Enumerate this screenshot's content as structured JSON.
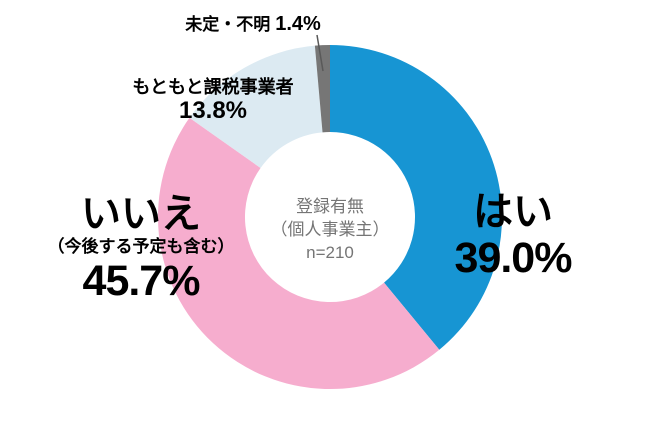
{
  "chart_data": {
    "type": "pie",
    "donut": true,
    "start_angle_deg": -90,
    "direction": "clockwise",
    "center_label": {
      "line1": "登録有無",
      "line2": "（個人事業主）",
      "line3": "n=210"
    },
    "segments": [
      {
        "id": "hai",
        "label": "はい",
        "value": 39.0,
        "value_text": "39.0%",
        "color": "#1795D3"
      },
      {
        "id": "iie",
        "label": "いいえ",
        "sublabel": "（今後する予定も含む）",
        "value": 45.7,
        "value_text": "45.7%",
        "color": "#F6ADCE"
      },
      {
        "id": "motomoto-kazei",
        "label": "もともと課税事業者",
        "value": 13.8,
        "value_text": "13.8%",
        "color": "#DCEAF2"
      },
      {
        "id": "mitei-fumei",
        "label": "未定・不明",
        "value": 1.4,
        "value_text": "1.4%",
        "color": "#767676"
      }
    ],
    "legend_position": "labels-around-chart",
    "grid": false
  }
}
